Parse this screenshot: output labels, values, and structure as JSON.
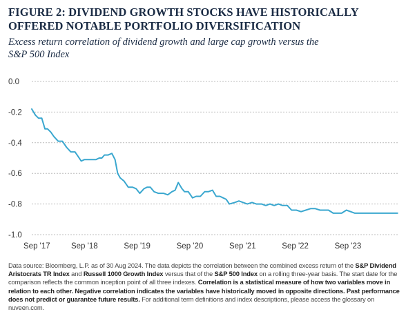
{
  "figure": {
    "title_line1": "FIGURE 2: DIVIDEND GROWTH STOCKS HAVE HISTORICALLY",
    "title_line2": "OFFERED NOTABLE PORTFOLIO DIVERSIFICATION",
    "subtitle_line1": "Excess return correlation of dividend growth and large cap growth versus the",
    "subtitle_line2": "S&P 500 Index"
  },
  "footnote": {
    "p1": "Data source: Bloomberg, L.P. as of 30 Aug 2024. The data depicts the correlation between the combined excess return of the ",
    "b1": "S&P Dividend Aristocrats TR Index",
    "p2": " and ",
    "b2": "Russell 1000 Growth Index",
    "p3": " versus that of the ",
    "b3": "S&P 500 Index",
    "p4": " on a rolling three-year basis. The start date for the comparison reflects the common inception point of all three indexes. ",
    "b4": "Correlation is a statistical measure of how two variables move in relation to each other. Negative correlation indicates the variables have historically moved in opposite directions. Past performance does not predict or guarantee future results.",
    "p5": " For additional term definitions and index descriptions, please access the glossary on nuveen.com."
  },
  "colors": {
    "line": "#3aa7cf",
    "grid": "#bcbcbc",
    "title": "#1a2b44"
  },
  "chart_data": {
    "type": "line",
    "title": "FIGURE 2: DIVIDEND GROWTH STOCKS HAVE HISTORICALLY OFFERED NOTABLE PORTFOLIO DIVERSIFICATION",
    "subtitle": "Excess return correlation of dividend growth and large cap growth versus the S&P 500 Index",
    "xlabel": "",
    "ylabel": "",
    "ylim": [
      -1.0,
      0.0
    ],
    "yticks": [
      "0.0",
      "-0.2",
      "-0.4",
      "-0.6",
      "-0.8",
      "-1.0"
    ],
    "ytick_values": [
      0.0,
      -0.2,
      -0.4,
      -0.6,
      -0.8,
      -1.0
    ],
    "xticks": [
      "Sep '17",
      "Sep '18",
      "Sep '19",
      "Sep '20",
      "Sep '21",
      "Sep '22",
      "Sep '23"
    ],
    "xlim": [
      2017.7,
      2024.67
    ],
    "grid": "horizontal dashed",
    "series": [
      {
        "x": [
          2017.7,
          2017.77,
          2017.83,
          2017.89,
          2017.95,
          2018.0,
          2018.06,
          2018.12,
          2018.2,
          2018.28,
          2018.36,
          2018.44,
          2018.52,
          2018.58,
          2018.64,
          2018.7,
          2018.78,
          2018.86,
          2018.92,
          2018.98,
          2019.03,
          2019.08,
          2019.15,
          2019.22,
          2019.28,
          2019.33,
          2019.38,
          2019.45,
          2019.53,
          2019.61,
          2019.68,
          2019.75,
          2019.83,
          2019.89,
          2019.95,
          2020.02,
          2020.1,
          2020.2,
          2020.28,
          2020.36,
          2020.42,
          2020.48,
          2020.55,
          2020.6,
          2020.67,
          2020.75,
          2020.82,
          2020.9,
          2020.98,
          2021.05,
          2021.13,
          2021.2,
          2021.27,
          2021.33,
          2021.39,
          2021.45,
          2021.55,
          2021.63,
          2021.71,
          2021.79,
          2021.88,
          2021.96,
          2022.06,
          2022.14,
          2022.22,
          2022.3,
          2022.38,
          2022.46,
          2022.55,
          2022.63,
          2022.72,
          2022.81,
          2022.9,
          2022.99,
          2023.08,
          2023.17,
          2023.25,
          2023.33,
          2023.42,
          2023.5,
          2023.58,
          2023.67,
          2023.75,
          2023.83,
          2023.92,
          2024.0,
          2024.08,
          2024.17,
          2024.25,
          2024.33,
          2024.42,
          2024.5,
          2024.58,
          2024.64
        ],
        "values": [
          -0.18,
          -0.22,
          -0.24,
          -0.24,
          -0.31,
          -0.31,
          -0.33,
          -0.36,
          -0.39,
          -0.39,
          -0.43,
          -0.46,
          -0.46,
          -0.49,
          -0.52,
          -0.51,
          -0.51,
          -0.51,
          -0.51,
          -0.5,
          -0.5,
          -0.48,
          -0.48,
          -0.47,
          -0.51,
          -0.6,
          -0.63,
          -0.65,
          -0.69,
          -0.69,
          -0.7,
          -0.73,
          -0.7,
          -0.69,
          -0.69,
          -0.72,
          -0.73,
          -0.73,
          -0.74,
          -0.72,
          -0.71,
          -0.66,
          -0.7,
          -0.72,
          -0.72,
          -0.76,
          -0.75,
          -0.75,
          -0.72,
          -0.72,
          -0.71,
          -0.75,
          -0.75,
          -0.76,
          -0.77,
          -0.8,
          -0.79,
          -0.78,
          -0.79,
          -0.8,
          -0.79,
          -0.8,
          -0.8,
          -0.81,
          -0.8,
          -0.81,
          -0.8,
          -0.81,
          -0.81,
          -0.84,
          -0.84,
          -0.85,
          -0.84,
          -0.83,
          -0.83,
          -0.84,
          -0.84,
          -0.84,
          -0.86,
          -0.86,
          -0.86,
          -0.84,
          -0.85,
          -0.86,
          -0.86,
          -0.86,
          -0.86,
          -0.86,
          -0.86,
          -0.86,
          -0.86,
          -0.86,
          -0.86,
          -0.86
        ]
      }
    ]
  }
}
